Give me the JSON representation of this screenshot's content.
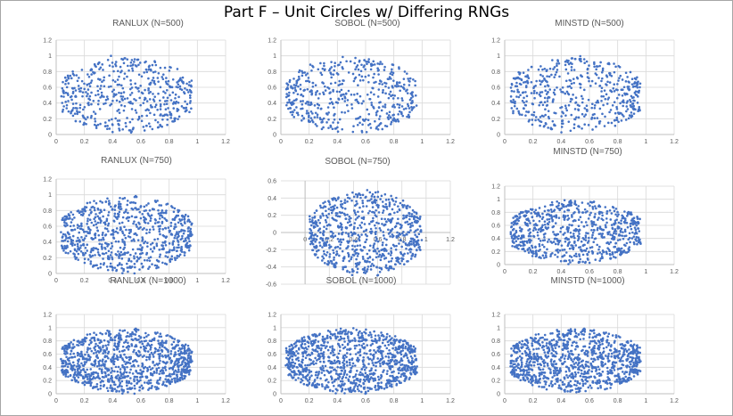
{
  "page": {
    "title": "Part F – Unit Circles w/ Differing RNGs"
  },
  "colors": {
    "marker": "#4472c4",
    "grid": "#d9d9d9",
    "axis": "#bfbfbf",
    "tick_text": "#595959",
    "title_text": "#595959"
  },
  "chart_data": [
    {
      "type": "scatter",
      "title": "RANLUX (N=500)",
      "n_points": 500,
      "xlim": [
        0,
        1.2
      ],
      "ylim": [
        0,
        1.2
      ],
      "xticks": [
        "0",
        "0.2",
        "0.4",
        "0.6",
        "0.8",
        "1",
        "1.2"
      ],
      "yticks": [
        "0",
        "0.2",
        "0.4",
        "0.6",
        "0.8",
        "1",
        "1.2"
      ],
      "grid": true,
      "center": [
        0.5,
        0.5
      ],
      "radius": 0.5,
      "grid_rows": "major"
    },
    {
      "type": "scatter",
      "title": "SOBOL (N=500)",
      "n_points": 500,
      "xlim": [
        0,
        1.2
      ],
      "ylim": [
        0,
        1.2
      ],
      "xticks": [
        "0",
        "0.2",
        "0.4",
        "0.6",
        "0.8",
        "1",
        "1.2"
      ],
      "yticks": [
        "0",
        "0.2",
        "0.4",
        "0.6",
        "0.8",
        "1",
        "1.2"
      ],
      "grid": true,
      "center": [
        0.5,
        0.5
      ],
      "radius": 0.5
    },
    {
      "type": "scatter",
      "title": "MINSTD (N=500)",
      "n_points": 500,
      "xlim": [
        0,
        1.2
      ],
      "ylim": [
        0,
        1.2
      ],
      "xticks": [
        "0",
        "0.2",
        "0.4",
        "0.6",
        "0.8",
        "1",
        "1.2"
      ],
      "yticks": [
        "0",
        "0.2",
        "0.4",
        "0.6",
        "0.8",
        "1",
        "1.2"
      ],
      "grid": true,
      "center": [
        0.5,
        0.5
      ],
      "radius": 0.5
    },
    {
      "type": "scatter",
      "title": "RANLUX (N=750)",
      "n_points": 750,
      "xlim": [
        0,
        1.2
      ],
      "ylim": [
        0,
        1.2
      ],
      "xticks": [
        "0",
        "0.2",
        "0.4",
        "0.6",
        "0.8",
        "1",
        "1.2"
      ],
      "yticks": [
        "0",
        "0.2",
        "0.4",
        "0.6",
        "0.8",
        "1",
        "1.2"
      ],
      "grid": true,
      "center": [
        0.5,
        0.5
      ],
      "radius": 0.5
    },
    {
      "type": "scatter",
      "title": "SOBOL (N=750)",
      "n_points": 750,
      "xlim": [
        -0.2,
        1.2
      ],
      "ylim": [
        -0.6,
        0.6
      ],
      "xticks": [
        "0",
        "0.2",
        "0.4",
        "0.6",
        "0.8",
        "1",
        "1.2"
      ],
      "yticks": [
        "-0.6",
        "-0.4",
        "-0.2",
        "0",
        "0.2",
        "0.4",
        "0.6"
      ],
      "grid": true,
      "center": [
        0.5,
        0
      ],
      "radius": 0.5
    },
    {
      "type": "scatter",
      "title": "MINSTD (N=750)",
      "n_points": 750,
      "xlim": [
        0,
        1.2
      ],
      "ylim": [
        0,
        1.2
      ],
      "xticks": [
        "0",
        "0.2",
        "0.4",
        "0.6",
        "0.8",
        "1",
        "1.2"
      ],
      "yticks": [
        "0",
        "0.2",
        "0.4",
        "0.6",
        "0.8",
        "1",
        "1.2"
      ],
      "grid": true,
      "center": [
        0.5,
        0.5
      ],
      "radius": 0.5
    },
    {
      "type": "scatter",
      "title": "RANLUX (N=1000)",
      "n_points": 1000,
      "xlim": [
        0,
        1.2
      ],
      "ylim": [
        0,
        1.2
      ],
      "xticks": [
        "0",
        "0.2",
        "0.4",
        "0.6",
        "0.8",
        "1",
        "1.2"
      ],
      "yticks": [
        "0",
        "0.2",
        "0.4",
        "0.6",
        "0.8",
        "1",
        "1.2"
      ],
      "grid": true,
      "center": [
        0.5,
        0.5
      ],
      "radius": 0.5
    },
    {
      "type": "scatter",
      "title": "SOBOL (N=1000)",
      "n_points": 1000,
      "xlim": [
        0,
        1.2
      ],
      "ylim": [
        0,
        1.2
      ],
      "xticks": [
        "0",
        "0.2",
        "0.4",
        "0.6",
        "0.8",
        "1",
        "1.2"
      ],
      "yticks": [
        "0",
        "0.2",
        "0.4",
        "0.6",
        "0.8",
        "1",
        "1.2"
      ],
      "grid": true,
      "center": [
        0.5,
        0.5
      ],
      "radius": 0.5
    },
    {
      "type": "scatter",
      "title": "MINSTD (N=1000)",
      "n_points": 1000,
      "xlim": [
        0,
        1.2
      ],
      "ylim": [
        0,
        1.2
      ],
      "xticks": [
        "0",
        "0.2",
        "0.4",
        "0.6",
        "0.8",
        "1",
        "1.2"
      ],
      "yticks": [
        "0",
        "0.2",
        "0.4",
        "0.6",
        "0.8",
        "1",
        "1.2"
      ],
      "grid": true,
      "center": [
        0.5,
        0.5
      ],
      "radius": 0.5
    }
  ]
}
